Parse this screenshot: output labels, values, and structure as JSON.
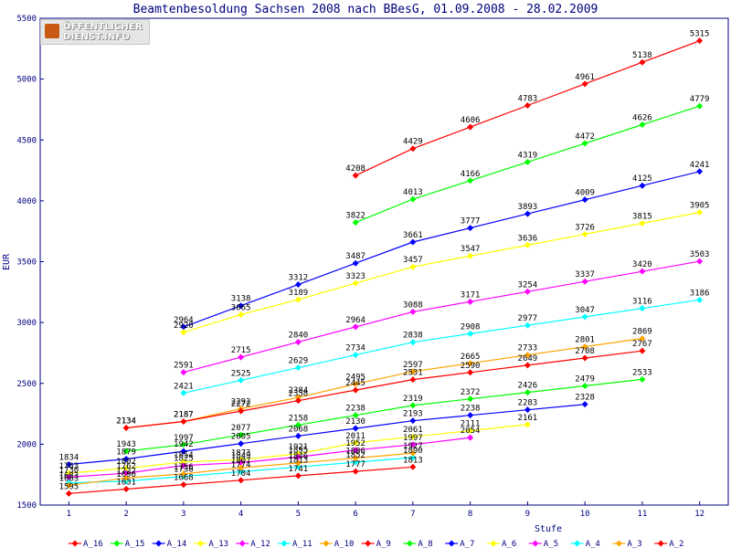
{
  "chart_data": {
    "type": "line",
    "title": "Beamtenbesoldung Sachsen 2008 nach BBesG, 01.09.2008 - 28.02.2009",
    "xlabel": "Stufe",
    "ylabel": "EUR",
    "x": [
      1,
      2,
      3,
      4,
      5,
      6,
      7,
      8,
      9,
      10,
      11,
      12
    ],
    "xlim": [
      0.5,
      12.5
    ],
    "ylim": [
      1500,
      5500
    ],
    "yticks": [
      1500,
      2000,
      2500,
      3000,
      3500,
      4000,
      4500,
      5000,
      5500
    ],
    "grid": false,
    "legend_position": "bottom",
    "series": [
      {
        "name": "A_16",
        "color": "#ff0000",
        "x": [
          6,
          7,
          8,
          9,
          10,
          11,
          12
        ],
        "values": [
          4208,
          4429,
          4606,
          4783,
          4961,
          5138,
          5315
        ]
      },
      {
        "name": "A_15",
        "color": "#00ff00",
        "x": [
          6,
          7,
          8,
          9,
          10,
          11,
          12
        ],
        "values": [
          3822,
          4013,
          4166,
          4319,
          4472,
          4626,
          4779
        ]
      },
      {
        "name": "A_14",
        "color": "#0000ff",
        "x": [
          3,
          4,
          5,
          6,
          7,
          8,
          9,
          10,
          11,
          12
        ],
        "values": [
          2964,
          3138,
          3312,
          3487,
          3661,
          3777,
          3893,
          4009,
          4125,
          4241
        ]
      },
      {
        "name": "A_13",
        "color": "#ffff00",
        "x": [
          3,
          4,
          5,
          6,
          7,
          8,
          9,
          10,
          11,
          12
        ],
        "values": [
          2920,
          3065,
          3189,
          3323,
          3457,
          3547,
          3636,
          3726,
          3815,
          3905
        ]
      },
      {
        "name": "A_12",
        "color": "#ff00ff",
        "x": [
          3,
          4,
          5,
          6,
          7,
          8,
          9,
          10,
          11,
          12
        ],
        "values": [
          2591,
          2715,
          2840,
          2964,
          3088,
          3171,
          3254,
          3337,
          3420,
          3503
        ]
      },
      {
        "name": "A_11",
        "color": "#00ffff",
        "x": [
          3,
          4,
          5,
          6,
          7,
          8,
          9,
          10,
          11,
          12
        ],
        "values": [
          2421,
          2525,
          2629,
          2734,
          2838,
          2908,
          2977,
          3047,
          3116,
          3186
        ]
      },
      {
        "name": "A_10",
        "color": "#ffa500",
        "x": [
          2,
          3,
          4,
          5,
          6,
          7,
          8,
          9,
          10,
          11
        ],
        "values": [
          2134,
          2187,
          2292,
          2384,
          2495,
          2597,
          2665,
          2733,
          2801,
          2869
        ]
      },
      {
        "name": "A_9",
        "color": "#ff0000",
        "x": [
          2,
          3,
          4,
          5,
          6,
          7,
          8,
          9,
          10,
          11
        ],
        "values": [
          2134,
          2187,
          2272,
          2358,
          2445,
          2531,
          2590,
          2649,
          2708,
          2767
        ]
      },
      {
        "name": "A_8",
        "color": "#00ff00",
        "x": [
          2,
          3,
          4,
          5,
          6,
          7,
          8,
          9,
          10,
          11
        ],
        "values": [
          1943,
          1997,
          2077,
          2158,
          2238,
          2319,
          2372,
          2426,
          2479,
          2533
        ]
      },
      {
        "name": "A_7",
        "color": "#0000ff",
        "x": [
          1,
          2,
          3,
          4,
          5,
          6,
          7,
          8,
          9,
          10
        ],
        "values": [
          1834,
          1879,
          1942,
          2005,
          2068,
          2130,
          2193,
          2238,
          2283,
          2328
        ]
      },
      {
        "name": "A_6",
        "color": "#ffff00",
        "x": [
          1,
          2,
          3,
          4,
          5,
          6,
          7,
          8,
          9
        ],
        "values": [
          1763,
          1802,
          1854,
          1873,
          1921,
          2011,
          2061,
          2111,
          2161
        ]
      },
      {
        "name": "A_5",
        "color": "#ff00ff",
        "x": [
          1,
          2,
          3,
          4,
          5,
          6,
          7,
          8
        ],
        "values": [
          1730,
          1762,
          1825,
          1849,
          1895,
          1952,
          1997,
          2054
        ]
      },
      {
        "name": "A_4",
        "color": "#00ffff",
        "x": [
          1,
          2,
          3,
          4,
          5,
          6,
          7
        ],
        "values": [
          1683,
          1696,
          1736,
          1774,
          1813,
          1852,
          1890
        ]
      },
      {
        "name": "A_3",
        "color": "#ffa500",
        "x": [
          1,
          2,
          3,
          4,
          5,
          6,
          7
        ],
        "values": [
          1663,
          1722,
          1756,
          1807,
          1846,
          1886,
          1927
        ]
      },
      {
        "name": "A_2",
        "color": "#ff0000",
        "x": [
          1,
          2,
          3,
          4,
          5,
          6,
          7
        ],
        "values": [
          1595,
          1631,
          1668,
          1704,
          1741,
          1777,
          1813
        ]
      }
    ]
  },
  "logo": {
    "line1": "ÖFFENTLICHER",
    "line2": "DIENST.INFO"
  }
}
